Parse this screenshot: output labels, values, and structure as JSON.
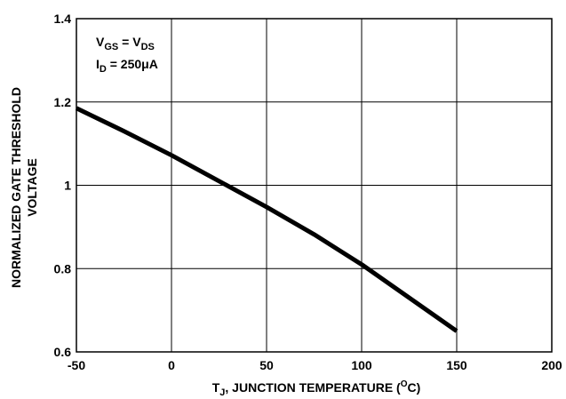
{
  "chart_data": {
    "type": "line",
    "title": "",
    "xlabel": {
      "main": "T",
      "sub": "J",
      "text": ", JUNCTION TEMPERATURE (",
      "unit_sup": "O",
      "unit": "C)"
    },
    "ylabel": {
      "line1": "NORMALIZED GATE THRESHOLD",
      "line2": "VOLTAGE"
    },
    "xlim": [
      -50,
      200
    ],
    "ylim": [
      0.6,
      1.4
    ],
    "xticks": [
      -50,
      0,
      50,
      100,
      150,
      200
    ],
    "yticks": [
      0.6,
      0.8,
      1,
      1.2,
      1.4
    ],
    "xtick_labels": [
      "-50",
      "0",
      "50",
      "100",
      "150",
      "200"
    ],
    "ytick_labels": [
      "0.6",
      "0.8",
      "1",
      "1.2",
      "1.4"
    ],
    "grid": true,
    "annotations": {
      "line1": {
        "a": "V",
        "a_sub": "GS",
        "eq": " = ",
        "b": "V",
        "b_sub": "DS"
      },
      "line2": {
        "a": "I",
        "a_sub": "D",
        "eq": " = 250",
        "mu": "μ",
        "unit": "A"
      }
    },
    "series": [
      {
        "x": [
          -50,
          -25,
          0,
          25,
          50,
          75,
          100,
          125,
          150
        ],
        "y": [
          1.185,
          1.13,
          1.072,
          1.01,
          0.948,
          0.882,
          0.81,
          0.73,
          0.65
        ]
      }
    ]
  }
}
